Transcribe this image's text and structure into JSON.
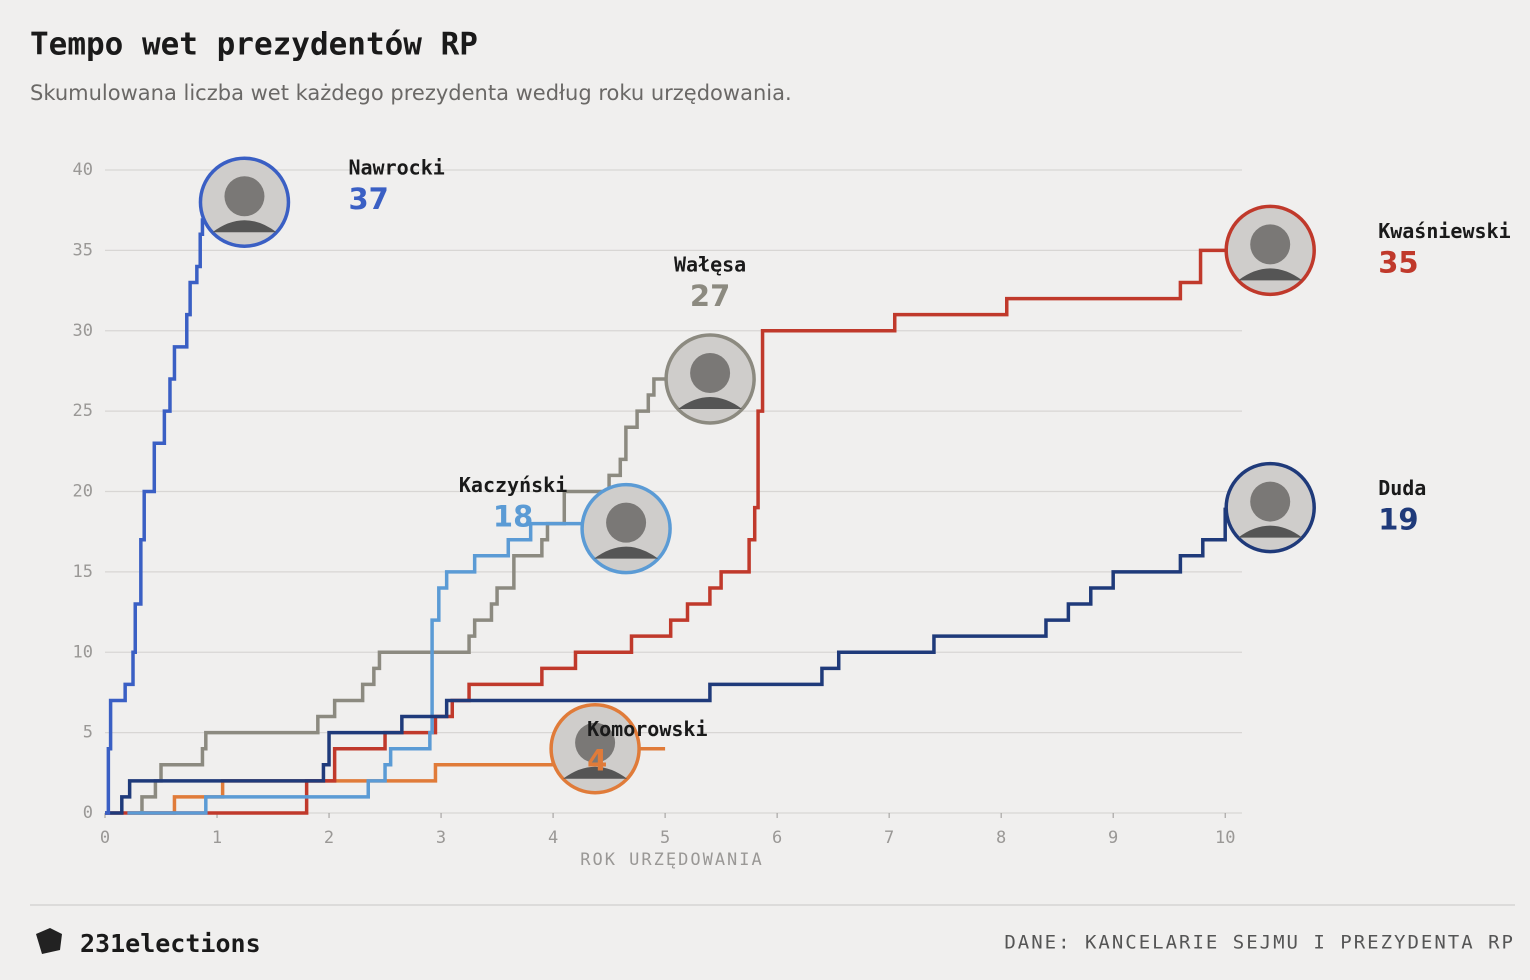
{
  "chart_data": {
    "type": "step",
    "title": "Tempo wet prezydentów RP",
    "subtitle": "Skumulowana liczba wet każdego prezydenta według roku urzędowania.",
    "x_label": "ROK URZĘDOWANIA",
    "xlim": [
      0,
      10.15
    ],
    "ylim": [
      0,
      40
    ],
    "xticks": [
      0,
      1,
      2,
      3,
      4,
      5,
      6,
      7,
      8,
      9,
      10
    ],
    "yticks": [
      0,
      5,
      10,
      15,
      20,
      25,
      30,
      35,
      40
    ],
    "grid": true,
    "series": [
      {
        "name": "Komorowski",
        "color": "#e07b39",
        "x": [
          0.2,
          0.62,
          1.05,
          2.95,
          4.0,
          5.0
        ],
        "values": [
          0,
          1,
          2,
          3,
          4,
          4
        ]
      },
      {
        "name": "Kwaśniewski",
        "color": "#c0392b",
        "x": [
          0,
          1.8,
          2.05,
          2.5,
          2.95,
          3.1,
          3.25,
          3.9,
          4.2,
          4.7,
          5.05,
          5.2,
          5.4,
          5.5,
          5.75,
          5.8,
          5.83,
          5.87,
          7.05,
          8.05,
          9.6,
          9.78,
          10.0
        ],
        "values": [
          0,
          2,
          4,
          5,
          6,
          7,
          8,
          9,
          10,
          11,
          12,
          13,
          14,
          15,
          17,
          19,
          25,
          30,
          31,
          32,
          33,
          35,
          35
        ]
      },
      {
        "name": "Wałęsa",
        "color": "#8c8a80",
        "x": [
          0.3,
          0.33,
          0.45,
          0.5,
          0.87,
          0.9,
          1.9,
          2.05,
          2.3,
          2.4,
          2.45,
          3.25,
          3.3,
          3.45,
          3.5,
          3.65,
          3.9,
          3.95,
          4.1,
          4.5,
          4.6,
          4.65,
          4.75,
          4.85,
          4.9,
          5.0
        ],
        "values": [
          0,
          1,
          2,
          3,
          4,
          5,
          6,
          7,
          8,
          9,
          10,
          11,
          12,
          13,
          14,
          16,
          17,
          18,
          20,
          21,
          22,
          24,
          25,
          26,
          27,
          27
        ]
      },
      {
        "name": "Kaczyński",
        "color": "#5b9bd5",
        "x": [
          0.2,
          0.9,
          2.35,
          2.5,
          2.55,
          2.9,
          2.92,
          2.98,
          3.05,
          3.3,
          3.6,
          3.8,
          4.25
        ],
        "values": [
          0,
          1,
          2,
          3,
          4,
          5,
          12,
          14,
          15,
          16,
          17,
          18,
          18
        ]
      },
      {
        "name": "Duda",
        "color": "#1f3a7a",
        "x": [
          0,
          0.15,
          0.22,
          1.95,
          2.0,
          2.65,
          3.05,
          5.4,
          6.4,
          6.55,
          7.4,
          8.4,
          8.6,
          8.8,
          9.0,
          9.6,
          9.8,
          10.0
        ],
        "values": [
          0,
          1,
          2,
          3,
          5,
          6,
          7,
          8,
          9,
          10,
          11,
          12,
          13,
          14,
          15,
          16,
          17,
          19
        ]
      },
      {
        "name": "Nawrocki",
        "color": "#3a5fc4",
        "x": [
          0,
          0.03,
          0.05,
          0.18,
          0.25,
          0.27,
          0.32,
          0.35,
          0.44,
          0.53,
          0.58,
          0.62,
          0.73,
          0.76,
          0.82,
          0.85,
          0.87
        ],
        "values": [
          0,
          4,
          7,
          8,
          10,
          13,
          17,
          20,
          23,
          25,
          27,
          29,
          31,
          33,
          34,
          36,
          37
        ]
      }
    ]
  },
  "footer": {
    "brand": "231elections",
    "source": "DANE: KANCELARIE SEJMU I PREZYDENTA RP"
  }
}
